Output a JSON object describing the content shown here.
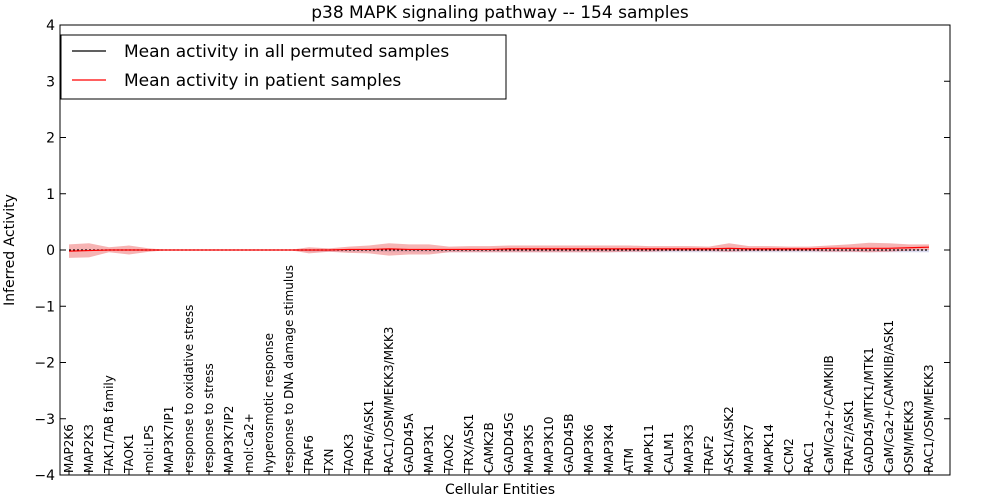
{
  "chart_data": {
    "type": "line",
    "title": "p38 MAPK signaling pathway -- 154 samples",
    "xlabel": "Cellular Entities",
    "ylabel": "Inferred Activity",
    "ylim": [
      -4,
      4
    ],
    "yticks": [
      -4,
      -3,
      -2,
      -1,
      0,
      1,
      2,
      3,
      4
    ],
    "legend_position": "top-left",
    "colors": {
      "permuted_line": "#000000",
      "patient_line": "#ff0000",
      "patient_band": "#f08080",
      "permuted_band": "#c8c8e6"
    },
    "categories": [
      "MAP2K6",
      "MAP2K3",
      "TAK1/TAB family",
      "TAOK1",
      "mol:LPS",
      "MAP3K7IP1",
      "response to oxidative stress",
      "response to stress",
      "MAP3K7IP2",
      "mol:Ca2+",
      "hyperosmotic response",
      "response to DNA damage stimulus",
      "TRAF6",
      "TXN",
      "TAOK3",
      "TRAF6/ASK1",
      "RAC1/OSM/MEKK3/MKK3",
      "GADD45A",
      "MAP3K1",
      "TAOK2",
      "TRX/ASK1",
      "CAMK2B",
      "GADD45G",
      "MAP3K5",
      "MAP3K10",
      "GADD45B",
      "MAP3K6",
      "MAP3K4",
      "ATM",
      "MAPK11",
      "CALM1",
      "MAP3K3",
      "TRAF2",
      "ASK1/ASK2",
      "MAP3K7",
      "MAPK14",
      "CCM2",
      "RAC1",
      "CaM/Ca2+/CAMKIIB",
      "TRAF2/ASK1",
      "GADD45/MTK1/MTK1",
      "CaM/Ca2+/CAMKIIB/ASK1",
      "OSM/MEKK3",
      "RAC1/OSM/MEKK3"
    ],
    "series": [
      {
        "name": "Mean activity in all permuted samples",
        "color": "#000000",
        "values": [
          0,
          0,
          0,
          0,
          0,
          0,
          0,
          0,
          0,
          0,
          0,
          0,
          0,
          0,
          0,
          0,
          0,
          0,
          0,
          0,
          0,
          0,
          0,
          0,
          0,
          0,
          0,
          0,
          0,
          0,
          0,
          0,
          0,
          0,
          0,
          0,
          0,
          0,
          0,
          0,
          0,
          0,
          0,
          0
        ]
      },
      {
        "name": "Mean activity in patient samples",
        "color": "#ff0000",
        "values": [
          -0.02,
          -0.01,
          0.0,
          0.0,
          0.0,
          0.0,
          0.0,
          0.0,
          0.0,
          0.0,
          0.0,
          0.0,
          0.0,
          0.0,
          0.01,
          0.01,
          0.02,
          0.01,
          0.01,
          0.01,
          0.01,
          0.01,
          0.02,
          0.02,
          0.02,
          0.02,
          0.02,
          0.02,
          0.02,
          0.02,
          0.02,
          0.02,
          0.02,
          0.03,
          0.02,
          0.02,
          0.02,
          0.02,
          0.03,
          0.03,
          0.03,
          0.03,
          0.04,
          0.05
        ],
        "upper": [
          0.1,
          0.12,
          0.05,
          0.08,
          0.03,
          0.0,
          0.0,
          0.0,
          0.0,
          0.0,
          0.0,
          0.0,
          0.05,
          0.03,
          0.06,
          0.08,
          0.12,
          0.1,
          0.1,
          0.06,
          0.07,
          0.07,
          0.08,
          0.08,
          0.08,
          0.08,
          0.08,
          0.08,
          0.08,
          0.07,
          0.07,
          0.07,
          0.06,
          0.12,
          0.07,
          0.07,
          0.06,
          0.06,
          0.08,
          0.1,
          0.13,
          0.12,
          0.1,
          0.1
        ],
        "lower": [
          -0.14,
          -0.13,
          -0.04,
          -0.08,
          -0.03,
          0.0,
          0.0,
          0.0,
          0.0,
          0.0,
          0.0,
          0.0,
          -0.06,
          -0.03,
          -0.05,
          -0.06,
          -0.1,
          -0.08,
          -0.08,
          -0.04,
          -0.04,
          -0.04,
          -0.04,
          -0.04,
          -0.04,
          -0.04,
          -0.04,
          -0.04,
          -0.03,
          -0.03,
          -0.02,
          -0.02,
          -0.02,
          -0.03,
          -0.02,
          -0.02,
          -0.02,
          -0.02,
          -0.03,
          -0.03,
          -0.04,
          -0.03,
          -0.01,
          0.0
        ]
      }
    ],
    "permuted_band": {
      "upper": [
        0.0,
        0.0,
        0.0,
        0.0,
        0.0,
        0.0,
        0.0,
        0.0,
        0.0,
        0.0,
        0.0,
        0.0,
        0.01,
        0.01,
        0.01,
        0.01,
        0.01,
        0.01,
        0.01,
        0.01,
        0.01,
        0.01,
        0.01,
        0.01,
        0.01,
        0.01,
        0.01,
        0.01,
        0.01,
        0.01,
        0.01,
        0.01,
        0.01,
        0.01,
        0.01,
        0.01,
        0.01,
        0.01,
        0.01,
        0.01,
        0.01,
        0.01,
        0.01,
        0.01
      ],
      "lower": [
        0.0,
        0.0,
        0.0,
        0.0,
        0.0,
        0.0,
        0.0,
        0.0,
        0.0,
        0.0,
        0.0,
        0.0,
        -0.03,
        -0.03,
        -0.03,
        -0.03,
        -0.04,
        -0.04,
        -0.04,
        -0.04,
        -0.04,
        -0.04,
        -0.04,
        -0.04,
        -0.04,
        -0.04,
        -0.04,
        -0.04,
        -0.04,
        -0.04,
        -0.04,
        -0.04,
        -0.04,
        -0.04,
        -0.04,
        -0.04,
        -0.04,
        -0.04,
        -0.04,
        -0.04,
        -0.04,
        -0.04,
        -0.04,
        -0.04
      ]
    }
  }
}
